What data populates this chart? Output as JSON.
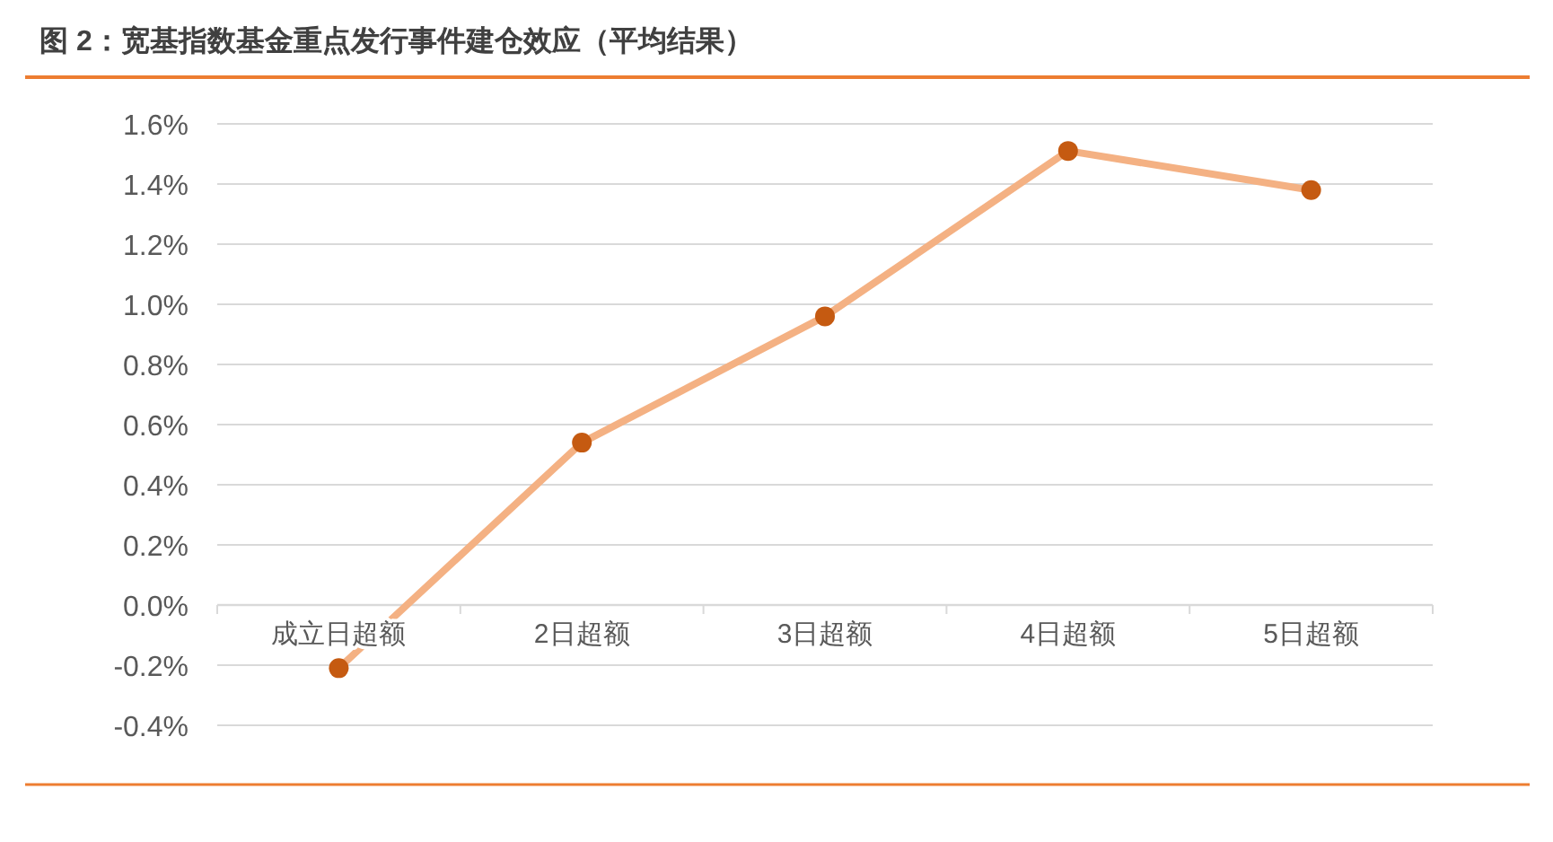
{
  "chart_data": {
    "type": "line",
    "title": "图 2：宽基指数基金重点发行事件建仓效应（平均结果）",
    "categories": [
      "成立日超额",
      "2日超额",
      "3日超额",
      "4日超额",
      "5日超额"
    ],
    "series": [
      {
        "color": "#f4b183",
        "values": [
          -0.21,
          0.54,
          0.96,
          1.51,
          1.38
        ]
      }
    ],
    "ylim": [
      -0.4,
      1.6
    ],
    "yticks": [
      {
        "value": -0.4,
        "label": "-0.4%"
      },
      {
        "value": -0.2,
        "label": "-0.2%"
      },
      {
        "value": 0,
        "label": "0.0%"
      },
      {
        "value": 0.2,
        "label": "0.2%"
      },
      {
        "value": 0.4,
        "label": "0.4%"
      },
      {
        "value": 0.6,
        "label": "0.6%"
      },
      {
        "value": 0.8,
        "label": "0.8%"
      },
      {
        "value": 1.0,
        "label": "1.0%"
      },
      {
        "value": 1.2,
        "label": "1.2%"
      },
      {
        "value": 1.4,
        "label": "1.4%"
      },
      {
        "value": 1.6,
        "label": "1.6%"
      }
    ],
    "grid": "y",
    "marker": "circle",
    "line_style": "solid"
  }
}
